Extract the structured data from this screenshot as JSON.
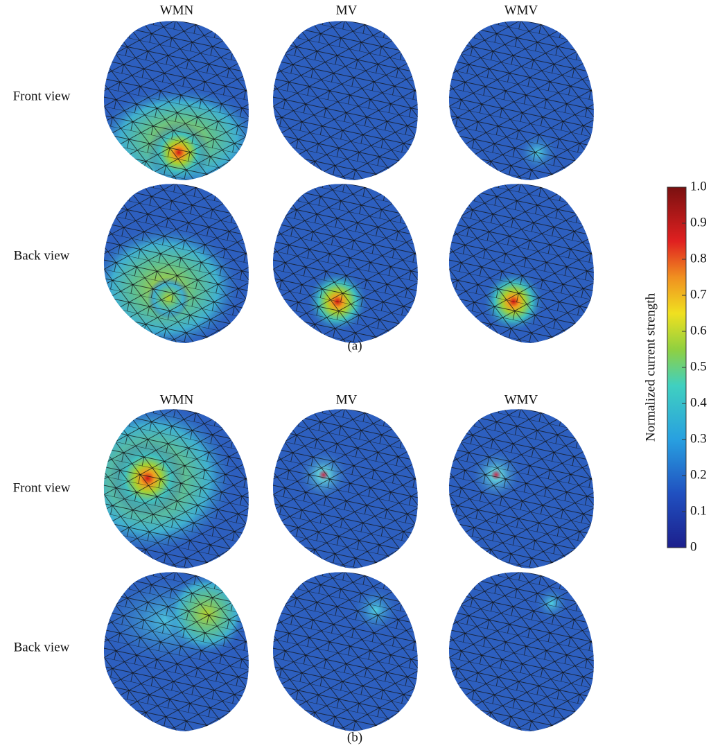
{
  "panels": [
    {
      "label": "(a)",
      "columns": [
        "WMN",
        "MV",
        "WMV"
      ],
      "rows": [
        "Front view",
        "Back view"
      ]
    },
    {
      "label": "(b)",
      "columns": [
        "WMN",
        "MV",
        "WMV"
      ],
      "rows": [
        "Front view",
        "Back view"
      ]
    }
  ],
  "colorbar": {
    "label": "Normalized current strength",
    "lim": [
      0,
      1
    ],
    "ticks": [
      0,
      0.1,
      0.2,
      0.3,
      0.4,
      0.5,
      0.6,
      0.7,
      0.8,
      0.9,
      {
        "value": 1,
        "label": "1.0"
      }
    ]
  }
}
